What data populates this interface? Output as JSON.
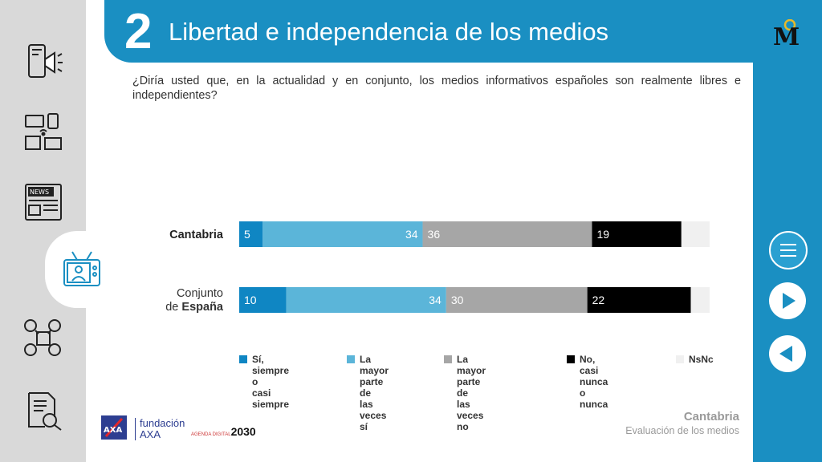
{
  "header": {
    "number": "2",
    "title": "Libertad e independencia de los medios"
  },
  "question": "¿Diría usted que, en la actualidad y en conjunto, los medios informativos españoles son realmente libres e independientes?",
  "colors": {
    "header_blue": "#1a8fc2",
    "s1": "#0f86c3",
    "s2": "#5bb5d9",
    "s3": "#a6a6a6",
    "s4": "#000000",
    "s5": "#f0f0f0"
  },
  "sidebar_icons": [
    "megaphone-phone-icon",
    "devices-icon",
    "newspaper-icon",
    "tv-icon",
    "social-media-icon",
    "document-search-icon"
  ],
  "chart_data": {
    "type": "bar",
    "orientation": "horizontal-stacked-100",
    "categories": [
      {
        "label_pre": "",
        "label_bold": "Cantabria"
      },
      {
        "label_pre": "Conjunto de ",
        "label_bold": "España"
      }
    ],
    "category_labels_line1": [
      "",
      "Conjunto"
    ],
    "category_labels_line2": [
      "Cantabria",
      "de "
    ],
    "category_labels_bold2": [
      "",
      "España"
    ],
    "series": [
      {
        "name": "Sí, siempre o casi siempre",
        "legend_line1": "Sí, siempre o",
        "legend_line2": "casi siempre",
        "color": "#0f86c3",
        "values": [
          5,
          10
        ],
        "label_color": "#ffffff",
        "label_align": "start"
      },
      {
        "name": "La mayor parte de las veces sí",
        "legend_line1": "La mayor parte de",
        "legend_line2": "las veces sí",
        "color": "#5bb5d9",
        "values": [
          34,
          34
        ],
        "label_color": "#ffffff",
        "label_align": "end"
      },
      {
        "name": "La mayor parte de las veces no",
        "legend_line1": "La mayor parte de",
        "legend_line2": "las veces no",
        "color": "#a6a6a6",
        "values": [
          36,
          30
        ],
        "label_color": "#ffffff",
        "label_align": "start"
      },
      {
        "name": "No, casi nunca o nunca",
        "legend_line1": "No, casi nunca",
        "legend_line2": "o nunca",
        "color": "#000000",
        "values": [
          19,
          22
        ],
        "label_color": "#ffffff",
        "label_align": "start"
      },
      {
        "name": "NsNc",
        "legend_line1": "NsNc",
        "legend_line2": "",
        "color": "#f0f0f0",
        "values": [
          6,
          4
        ],
        "label_color": "#333333",
        "label_align": "none"
      }
    ],
    "xlim": [
      0,
      100
    ],
    "legend_position": "bottom"
  },
  "footer": {
    "region": "Cantabria",
    "subtitle": "Evaluación de los medios"
  },
  "logos": {
    "fundacion": "fundación",
    "axa": "AXA",
    "agenda": "2030",
    "agenda_small": "AGENDA DIGITAL"
  }
}
